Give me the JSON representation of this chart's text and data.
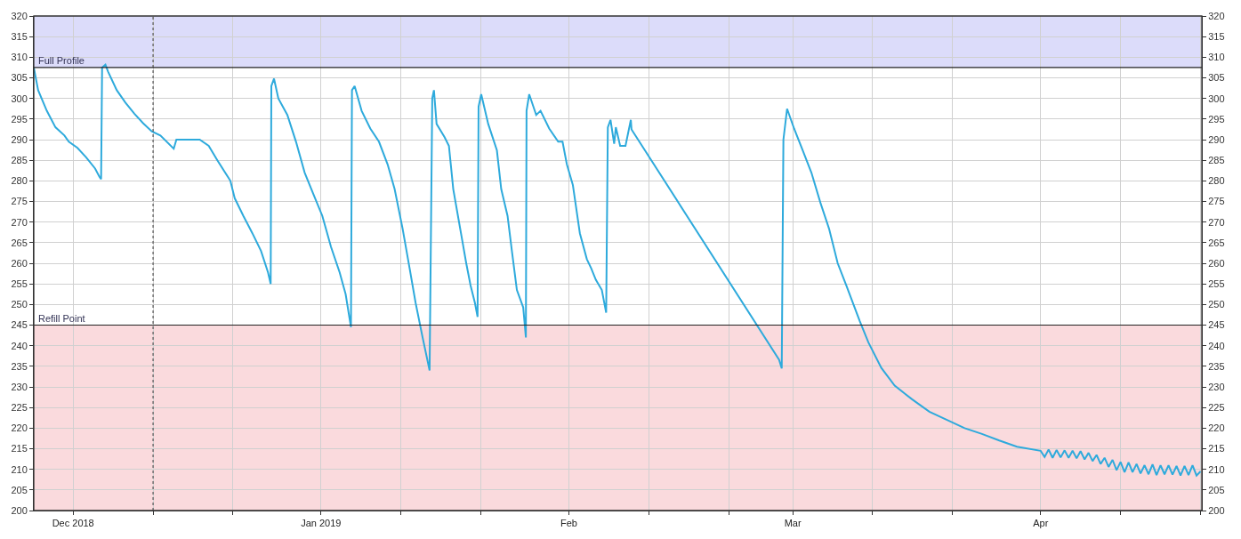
{
  "chart_data": {
    "type": "line",
    "x": [
      "2018-11-26T02:00",
      "2018-11-26T15:00",
      "2018-11-27T17:00",
      "2018-11-28T19:00",
      "2018-11-29T22:00",
      "2018-11-30T11:00",
      "2018-12-01T13:00",
      "2018-12-02T15:00",
      "2018-12-03T18:00",
      "2018-12-04T07:00",
      "2018-12-04T12:00",
      "2018-12-04T15:00",
      "2018-12-05T01:00",
      "2018-12-05T09:00",
      "2018-12-06T11:00",
      "2018-12-07T13:00",
      "2018-12-08T16:00",
      "2018-12-09T18:00",
      "2018-12-10T20:00",
      "2018-12-11T22:00",
      "2018-12-13T14:00",
      "2018-12-13T22:00",
      "2018-12-15T18:00",
      "2018-12-16T20:00",
      "2018-12-17T23:00",
      "2018-12-19T01:00",
      "2018-12-20T16:00",
      "2018-12-21T05:00",
      "2018-12-22T07:00",
      "2018-12-23T10:00",
      "2018-12-24T12:00",
      "2018-12-25T09:00",
      "2018-12-25T17:00",
      "2018-12-25T19:00",
      "2018-12-26T03:00",
      "2018-12-26T16:00",
      "2018-12-27T19:00",
      "2018-12-28T21:00",
      "2018-12-29T23:00",
      "2018-12-31T01:00",
      "2019-01-01T04:00",
      "2019-01-02T06:00",
      "2019-01-03T08:00",
      "2019-01-04T02:00",
      "2019-01-04T18:00",
      "2019-01-04T21:00",
      "2019-01-05T05:00",
      "2019-01-06T02:00",
      "2019-01-07T04:00",
      "2019-01-08T06:00",
      "2019-01-09T08:00",
      "2019-01-10T05:00",
      "2019-01-11T05:00",
      "2019-01-12T02:00",
      "2019-01-12T20:00",
      "2019-01-13T17:00",
      "2019-01-14T14:00",
      "2019-01-14T22:00",
      "2019-01-15T03:00",
      "2019-01-15T11:00",
      "2019-01-16T11:00",
      "2019-01-17T00:00",
      "2019-01-17T13:00",
      "2019-01-18T15:00",
      "2019-01-19T04:00",
      "2019-01-19T17:00",
      "2019-01-20T06:00",
      "2019-01-20T14:00",
      "2019-01-20T17:00",
      "2019-01-21T01:00",
      "2019-01-21T22:00",
      "2019-01-23T00:00",
      "2019-01-23T13:00",
      "2019-01-24T08:00",
      "2019-01-24T21:00",
      "2019-01-25T12:00",
      "2019-01-26T07:00",
      "2019-01-26T15:00",
      "2019-01-26T17:00",
      "2019-01-27T01:00",
      "2019-01-27T22:00",
      "2019-01-28T11:00",
      "2019-01-29T13:00",
      "2019-01-30T16:00",
      "2019-01-31T05:00",
      "2019-01-31T18:00",
      "2019-02-01T12:00",
      "2019-02-02T09:00",
      "2019-02-03T06:00",
      "2019-02-03T19:00",
      "2019-02-04T09:00",
      "2019-02-05T03:00",
      "2019-02-05T16:00",
      "2019-02-05T21:00",
      "2019-02-06T05:00",
      "2019-02-06T16:00",
      "2019-02-06T21:00",
      "2019-02-07T10:00",
      "2019-02-08T02:00",
      "2019-02-08T18:00",
      "2019-02-08T20:00",
      "2019-02-27T07:00",
      "2019-02-27T15:00",
      "2019-02-27T20:00",
      "2019-02-28T07:00",
      "2019-03-01T04:00",
      "2019-03-02T06:00",
      "2019-03-03T08:00",
      "2019-03-04T11:00",
      "2019-03-05T13:00",
      "2019-03-06T15:00",
      "2019-03-07T17:00",
      "2019-03-09T09:00",
      "2019-03-10T11:00",
      "2019-03-12T02:00",
      "2019-03-13T18:00",
      "2019-03-15T22:00",
      "2019-03-18T02:00",
      "2019-03-20T07:00",
      "2019-03-22T12:00",
      "2019-03-24T16:00",
      "2019-03-26T20:00",
      "2019-03-29T01:00",
      "2019-04-01T00:00",
      "2019-04-01T12:00",
      "2019-04-02T00:00",
      "2019-04-02T12:00",
      "2019-04-03T00:00",
      "2019-04-03T12:00",
      "2019-04-04T00:00",
      "2019-04-04T12:00",
      "2019-04-05T00:00",
      "2019-04-05T12:00",
      "2019-04-06T00:00",
      "2019-04-06T12:00",
      "2019-04-07T00:00",
      "2019-04-07T12:00",
      "2019-04-08T00:00",
      "2019-04-08T12:00",
      "2019-04-09T00:00",
      "2019-04-09T12:00",
      "2019-04-10T00:00",
      "2019-04-10T12:00",
      "2019-04-11T00:00",
      "2019-04-11T12:00",
      "2019-04-12T00:00",
      "2019-04-12T12:00",
      "2019-04-13T00:00",
      "2019-04-13T12:00",
      "2019-04-14T00:00",
      "2019-04-14T12:00",
      "2019-04-15T00:00",
      "2019-04-15T12:00",
      "2019-04-16T00:00",
      "2019-04-16T12:00",
      "2019-04-17T00:00",
      "2019-04-17T12:00",
      "2019-04-18T00:00",
      "2019-04-18T12:00",
      "2019-04-19T00:00",
      "2019-04-19T12:00",
      "2019-04-20T00:00",
      "2019-04-20T12:00",
      "2019-04-21T00:00"
    ],
    "series": [
      {
        "color": "#2eaadc",
        "values": [
          307.5,
          302,
          297,
          293,
          291,
          289.5,
          288,
          285.7,
          283,
          281,
          280.4,
          307.5,
          308.2,
          306.5,
          302,
          299,
          296.3,
          294,
          292,
          291,
          287.8,
          290,
          290,
          290,
          288.5,
          285,
          280,
          275.8,
          271.5,
          267.3,
          263,
          257.8,
          255,
          303,
          304.8,
          300,
          296,
          289.5,
          282,
          276.8,
          271.5,
          264,
          257.8,
          252.5,
          244.5,
          302,
          303,
          297,
          292.7,
          289.5,
          284,
          278,
          268.4,
          258.8,
          250.4,
          242,
          234,
          300,
          302,
          293.8,
          290.6,
          288.5,
          278,
          266,
          260,
          254.6,
          250.4,
          247,
          298,
          301,
          293.8,
          287.4,
          278,
          271.5,
          263,
          253.5,
          249.3,
          242,
          297,
          301,
          296,
          297,
          292.7,
          289.5,
          289.5,
          284,
          279,
          267.3,
          261,
          258.8,
          256,
          253.5,
          248,
          293,
          294.8,
          289,
          293,
          288.5,
          288.5,
          294.8,
          292.5,
          236.6,
          234.5,
          290,
          297.5,
          292.7,
          287.4,
          282,
          274.7,
          268.4,
          260,
          254.6,
          246,
          240.8,
          234.6,
          230.3,
          227,
          224,
          222,
          220,
          218.6,
          217,
          215.5,
          214.5,
          213,
          214.8,
          212.8,
          214.7,
          212.9,
          214.6,
          212.8,
          214.5,
          212.7,
          214.4,
          212.4,
          214,
          212,
          213.5,
          211.3,
          212.8,
          210.6,
          212.3,
          209.8,
          211.8,
          209.3,
          211.7,
          209.3,
          211.3,
          209,
          211,
          208.8,
          211.2,
          208.6,
          211,
          208.8,
          211,
          208.7,
          210.8,
          208.5,
          210.8,
          208.6,
          211,
          208.5,
          209.5
        ]
      }
    ],
    "xlim": [
      "2018-11-26T02:00",
      "2019-04-21T04:00"
    ],
    "xticks": [
      {
        "value": "2018-12-01",
        "label": "Dec 2018"
      },
      {
        "value": "2018-12-11",
        "label": null
      },
      {
        "value": "2018-12-21",
        "label": null
      },
      {
        "value": "2019-01-01",
        "label": "Jan 2019"
      },
      {
        "value": "2019-01-11",
        "label": null
      },
      {
        "value": "2019-01-21",
        "label": null
      },
      {
        "value": "2019-02-01",
        "label": "Feb"
      },
      {
        "value": "2019-02-11",
        "label": null
      },
      {
        "value": "2019-02-21",
        "label": null
      },
      {
        "value": "2019-03-01",
        "label": "Mar"
      },
      {
        "value": "2019-03-11",
        "label": null
      },
      {
        "value": "2019-03-21",
        "label": null
      },
      {
        "value": "2019-04-01",
        "label": "Apr"
      },
      {
        "value": "2019-04-11",
        "label": null
      },
      {
        "value": "2019-04-21",
        "label": null
      }
    ],
    "ylim": [
      200,
      320
    ],
    "yticks": [
      200,
      205,
      210,
      215,
      220,
      225,
      230,
      235,
      240,
      245,
      250,
      255,
      260,
      265,
      270,
      275,
      280,
      285,
      290,
      295,
      300,
      305,
      310,
      315,
      320
    ],
    "y2lim": [
      200,
      320
    ],
    "y2ticks": [
      200,
      205,
      210,
      215,
      220,
      225,
      230,
      235,
      240,
      245,
      250,
      255,
      260,
      265,
      270,
      275,
      280,
      285,
      290,
      295,
      300,
      305,
      310,
      315,
      320
    ],
    "bands": [
      {
        "axis": "y",
        "from": 307.5,
        "to": 320,
        "label": "Full Profile",
        "color": "#dcdcfa"
      },
      {
        "axis": "y",
        "from": 200,
        "to": 245,
        "label": "Refill Point",
        "color": "#fadadd"
      }
    ],
    "ref_lines": [
      {
        "axis": "x",
        "value": "2018-12-11",
        "line_style": "dotted",
        "color": "#555555"
      },
      {
        "axis": "y",
        "value": 307.5,
        "line_style": "solid",
        "color": "#222222"
      },
      {
        "axis": "y",
        "value": 245,
        "line_style": "solid",
        "color": "#222222"
      }
    ],
    "grid": true,
    "marker": "none",
    "line_style": "solid"
  }
}
